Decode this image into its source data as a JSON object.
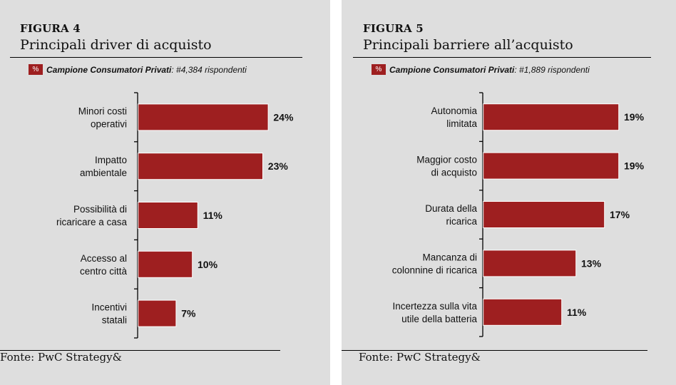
{
  "colors": {
    "bar": "#9e1f20",
    "panel_bg": "#dedede",
    "legend_swatch_text": "#ffffff"
  },
  "legend_symbol": "%",
  "chart_data": [
    {
      "type": "bar",
      "orientation": "horizontal",
      "figure_label": "FIGURA 4",
      "title": "Principali driver di acquisto",
      "legend": {
        "series_name": "Campione Consumatori  Privati",
        "note": ": #4,384 rispondenti"
      },
      "categories": [
        [
          "Minori costi",
          "operativi"
        ],
        [
          "Impatto",
          "ambientale"
        ],
        [
          "Possibilità di",
          "ricaricare a casa"
        ],
        [
          "Accesso al",
          "centro città"
        ],
        [
          "Incentivi",
          "statali"
        ]
      ],
      "values": [
        24,
        23,
        11,
        10,
        7
      ],
      "value_labels": [
        "24%",
        "23%",
        "11%",
        "10%",
        "7%"
      ],
      "unit": "%",
      "xlim": [
        0,
        30
      ],
      "source": "Fonte: PwC Strategy&"
    },
    {
      "type": "bar",
      "orientation": "horizontal",
      "figure_label": "FIGURA 5",
      "title": "Principali barriere all’acquisto",
      "legend": {
        "series_name": "Campione Consumatori  Privati",
        "note": ": #1,889 rispondenti"
      },
      "categories": [
        [
          "Autonomia",
          "limitata"
        ],
        [
          "Maggior costo",
          "di acquisto"
        ],
        [
          "Durata della",
          "ricarica"
        ],
        [
          "Mancanza di",
          "colonnine di ricarica"
        ],
        [
          "Incertezza  sulla vita",
          "utile della batteria"
        ]
      ],
      "values": [
        19,
        19,
        17,
        13,
        11
      ],
      "value_labels": [
        "19%",
        "19%",
        "17%",
        "13%",
        "11%"
      ],
      "unit": "%",
      "xlim": [
        0,
        24
      ],
      "source": "Fonte: PwC Strategy&"
    }
  ]
}
